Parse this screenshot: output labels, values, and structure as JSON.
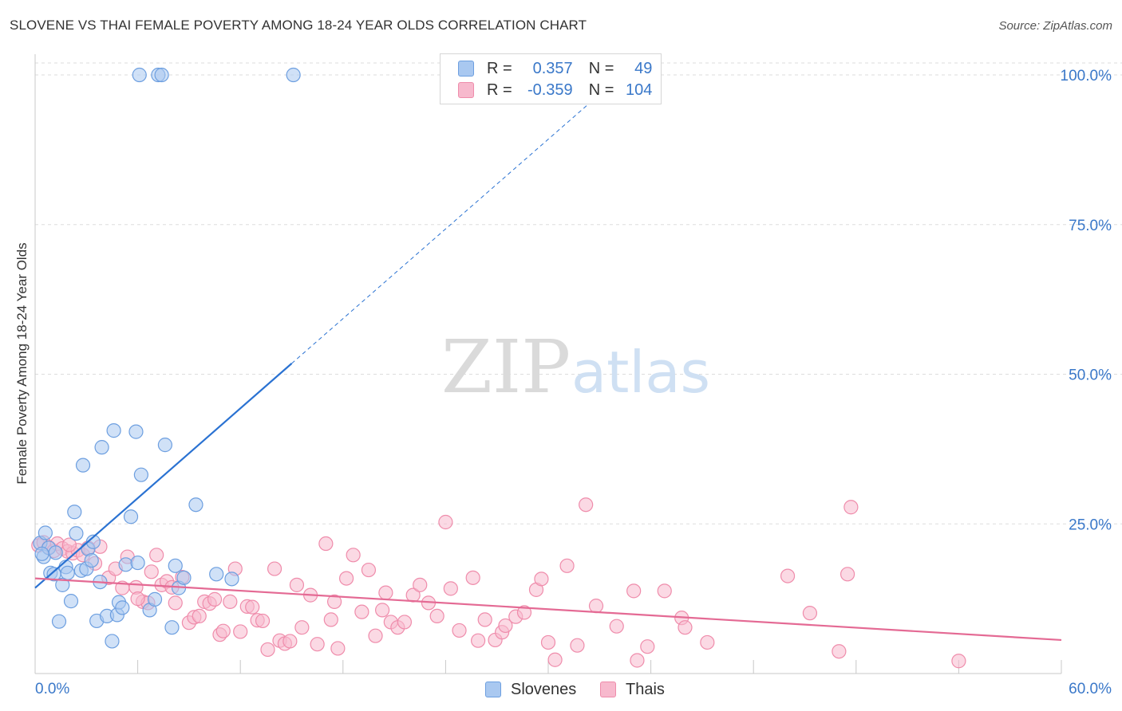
{
  "header": {
    "title": "SLOVENE VS THAI FEMALE POVERTY AMONG 18-24 YEAR OLDS CORRELATION CHART",
    "source": "Source: ZipAtlas.com"
  },
  "watermark": {
    "zip": "ZIP",
    "atlas": "atlas"
  },
  "legend": {
    "r_label": "R =",
    "n_label": "N =",
    "rows": [
      {
        "r": "0.357",
        "n": "49",
        "color": "#a9c8f0"
      },
      {
        "r": "-0.359",
        "n": "104",
        "color": "#f7b9cd"
      }
    ]
  },
  "bottom_legend": [
    {
      "label": "Slovenes",
      "color": "#a9c8f0"
    },
    {
      "label": "Thais",
      "color": "#f7b9cd"
    }
  ],
  "colors": {
    "blue_fill": "#a9c8f0",
    "blue_stroke": "#6d9fe0",
    "blue_line": "#2a72d2",
    "pink_fill": "#f7b9cd",
    "pink_stroke": "#ef8cab",
    "pink_line": "#e46a94",
    "grid": "#dddddd",
    "tick_label": "#3a78c9"
  },
  "chart_data": {
    "type": "scatter",
    "title": "SLOVENE VS THAI FEMALE POVERTY AMONG 18-24 YEAR OLDS CORRELATION CHART",
    "xlabel": "",
    "ylabel": "Female Poverty Among 18-24 Year Olds",
    "xlim": [
      0,
      60
    ],
    "ylim": [
      0,
      102
    ],
    "x_tick_labels": [
      "0.0%",
      "60.0%"
    ],
    "y_ticks": [
      25,
      50,
      75,
      100
    ],
    "y_tick_labels": [
      "25.0%",
      "50.0%",
      "75.0%",
      "100.0%"
    ],
    "grid": true,
    "series": [
      {
        "name": "Slovenes",
        "r": 0.357,
        "n": 49,
        "trend": {
          "x0": 0,
          "y0": 14.3,
          "x1": 15.0,
          "y1": 51.8,
          "dashed_to_x": 32.5,
          "dashed_to_y": 95.5
        },
        "points": [
          [
            0.3,
            21.8
          ],
          [
            0.5,
            19.5
          ],
          [
            0.6,
            23.5
          ],
          [
            0.8,
            21.0
          ],
          [
            0.9,
            16.8
          ],
          [
            1.1,
            16.6
          ],
          [
            1.2,
            20.2
          ],
          [
            1.4,
            8.7
          ],
          [
            1.6,
            14.8
          ],
          [
            1.8,
            17.8
          ],
          [
            1.9,
            16.8
          ],
          [
            2.1,
            12.1
          ],
          [
            2.3,
            27.0
          ],
          [
            2.4,
            23.4
          ],
          [
            2.7,
            17.2
          ],
          [
            2.8,
            34.8
          ],
          [
            3.0,
            17.5
          ],
          [
            3.1,
            20.8
          ],
          [
            3.3,
            18.9
          ],
          [
            3.4,
            22.0
          ],
          [
            3.6,
            8.8
          ],
          [
            3.8,
            15.3
          ],
          [
            3.9,
            37.8
          ],
          [
            4.2,
            9.6
          ],
          [
            4.5,
            5.4
          ],
          [
            4.6,
            40.6
          ],
          [
            4.8,
            9.8
          ],
          [
            4.9,
            11.9
          ],
          [
            5.1,
            11.0
          ],
          [
            5.3,
            18.2
          ],
          [
            5.6,
            26.2
          ],
          [
            5.9,
            40.4
          ],
          [
            6.0,
            18.5
          ],
          [
            6.2,
            33.2
          ],
          [
            6.7,
            10.6
          ],
          [
            7.0,
            12.4
          ],
          [
            7.6,
            38.2
          ],
          [
            8.0,
            7.7
          ],
          [
            8.2,
            18.0
          ],
          [
            8.4,
            14.3
          ],
          [
            8.7,
            16.0
          ],
          [
            9.4,
            28.2
          ],
          [
            10.6,
            16.6
          ],
          [
            11.5,
            15.8
          ],
          [
            6.1,
            100.0
          ],
          [
            7.2,
            100.0
          ],
          [
            7.4,
            100.0
          ],
          [
            15.1,
            100.0
          ],
          [
            0.4,
            20.0
          ]
        ]
      },
      {
        "name": "Thais",
        "r": -0.359,
        "n": 104,
        "trend": {
          "x0": 0,
          "y0": 15.9,
          "x1": 60.0,
          "y1": 5.6
        },
        "points": [
          [
            0.2,
            21.4
          ],
          [
            0.5,
            21.9
          ],
          [
            0.8,
            21.1
          ],
          [
            1.1,
            20.5
          ],
          [
            1.3,
            21.7
          ],
          [
            1.6,
            20.9
          ],
          [
            1.9,
            20.4
          ],
          [
            2.2,
            20.1
          ],
          [
            2.5,
            20.6
          ],
          [
            2.8,
            19.8
          ],
          [
            3.1,
            21.0
          ],
          [
            3.5,
            18.4
          ],
          [
            3.8,
            21.2
          ],
          [
            4.3,
            16.0
          ],
          [
            4.7,
            17.5
          ],
          [
            5.1,
            14.3
          ],
          [
            5.4,
            19.5
          ],
          [
            5.9,
            14.4
          ],
          [
            6.3,
            12.0
          ],
          [
            6.6,
            11.8
          ],
          [
            6.8,
            17.0
          ],
          [
            7.1,
            19.8
          ],
          [
            7.4,
            14.8
          ],
          [
            7.7,
            15.4
          ],
          [
            8.0,
            14.4
          ],
          [
            8.2,
            11.8
          ],
          [
            8.6,
            16.1
          ],
          [
            9.0,
            8.5
          ],
          [
            9.3,
            9.4
          ],
          [
            9.6,
            9.6
          ],
          [
            9.9,
            12.0
          ],
          [
            10.2,
            11.7
          ],
          [
            10.5,
            12.4
          ],
          [
            10.8,
            6.5
          ],
          [
            11.0,
            7.1
          ],
          [
            11.4,
            12.0
          ],
          [
            11.7,
            17.5
          ],
          [
            12.0,
            7.0
          ],
          [
            12.4,
            11.2
          ],
          [
            12.7,
            11.1
          ],
          [
            13.0,
            8.9
          ],
          [
            13.3,
            8.8
          ],
          [
            13.6,
            4.0
          ],
          [
            14.0,
            17.5
          ],
          [
            14.3,
            5.5
          ],
          [
            14.6,
            5.0
          ],
          [
            14.9,
            5.4
          ],
          [
            15.3,
            14.8
          ],
          [
            15.6,
            7.7
          ],
          [
            16.1,
            13.1
          ],
          [
            16.5,
            4.9
          ],
          [
            17.0,
            21.7
          ],
          [
            17.3,
            9.0
          ],
          [
            17.7,
            4.2
          ],
          [
            18.2,
            15.9
          ],
          [
            18.6,
            19.8
          ],
          [
            19.1,
            10.3
          ],
          [
            19.5,
            17.3
          ],
          [
            19.9,
            6.3
          ],
          [
            20.3,
            10.6
          ],
          [
            20.8,
            8.6
          ],
          [
            21.2,
            7.7
          ],
          [
            21.6,
            8.6
          ],
          [
            22.1,
            13.1
          ],
          [
            22.5,
            14.8
          ],
          [
            23.0,
            11.8
          ],
          [
            23.5,
            9.6
          ],
          [
            24.0,
            25.3
          ],
          [
            24.3,
            14.2
          ],
          [
            24.8,
            7.2
          ],
          [
            25.6,
            16.0
          ],
          [
            25.9,
            5.5
          ],
          [
            26.3,
            9.0
          ],
          [
            26.9,
            5.6
          ],
          [
            27.3,
            6.9
          ],
          [
            27.5,
            8.0
          ],
          [
            28.1,
            9.5
          ],
          [
            28.6,
            10.2
          ],
          [
            29.3,
            14.0
          ],
          [
            29.6,
            15.8
          ],
          [
            30.0,
            5.2
          ],
          [
            30.4,
            2.3
          ],
          [
            31.1,
            18.0
          ],
          [
            31.7,
            4.7
          ],
          [
            32.2,
            28.2
          ],
          [
            32.8,
            11.3
          ],
          [
            34.0,
            7.9
          ],
          [
            35.0,
            13.8
          ],
          [
            35.2,
            2.2
          ],
          [
            35.8,
            4.5
          ],
          [
            36.8,
            13.8
          ],
          [
            37.8,
            9.3
          ],
          [
            38.0,
            7.7
          ],
          [
            39.3,
            5.2
          ],
          [
            44.0,
            16.3
          ],
          [
            45.3,
            10.1
          ],
          [
            47.0,
            3.7
          ],
          [
            47.5,
            16.6
          ],
          [
            47.7,
            27.8
          ],
          [
            54.0,
            2.1
          ],
          [
            17.5,
            12.0
          ],
          [
            20.5,
            13.5
          ],
          [
            2.0,
            21.5
          ],
          [
            6.0,
            12.5
          ]
        ]
      }
    ]
  }
}
